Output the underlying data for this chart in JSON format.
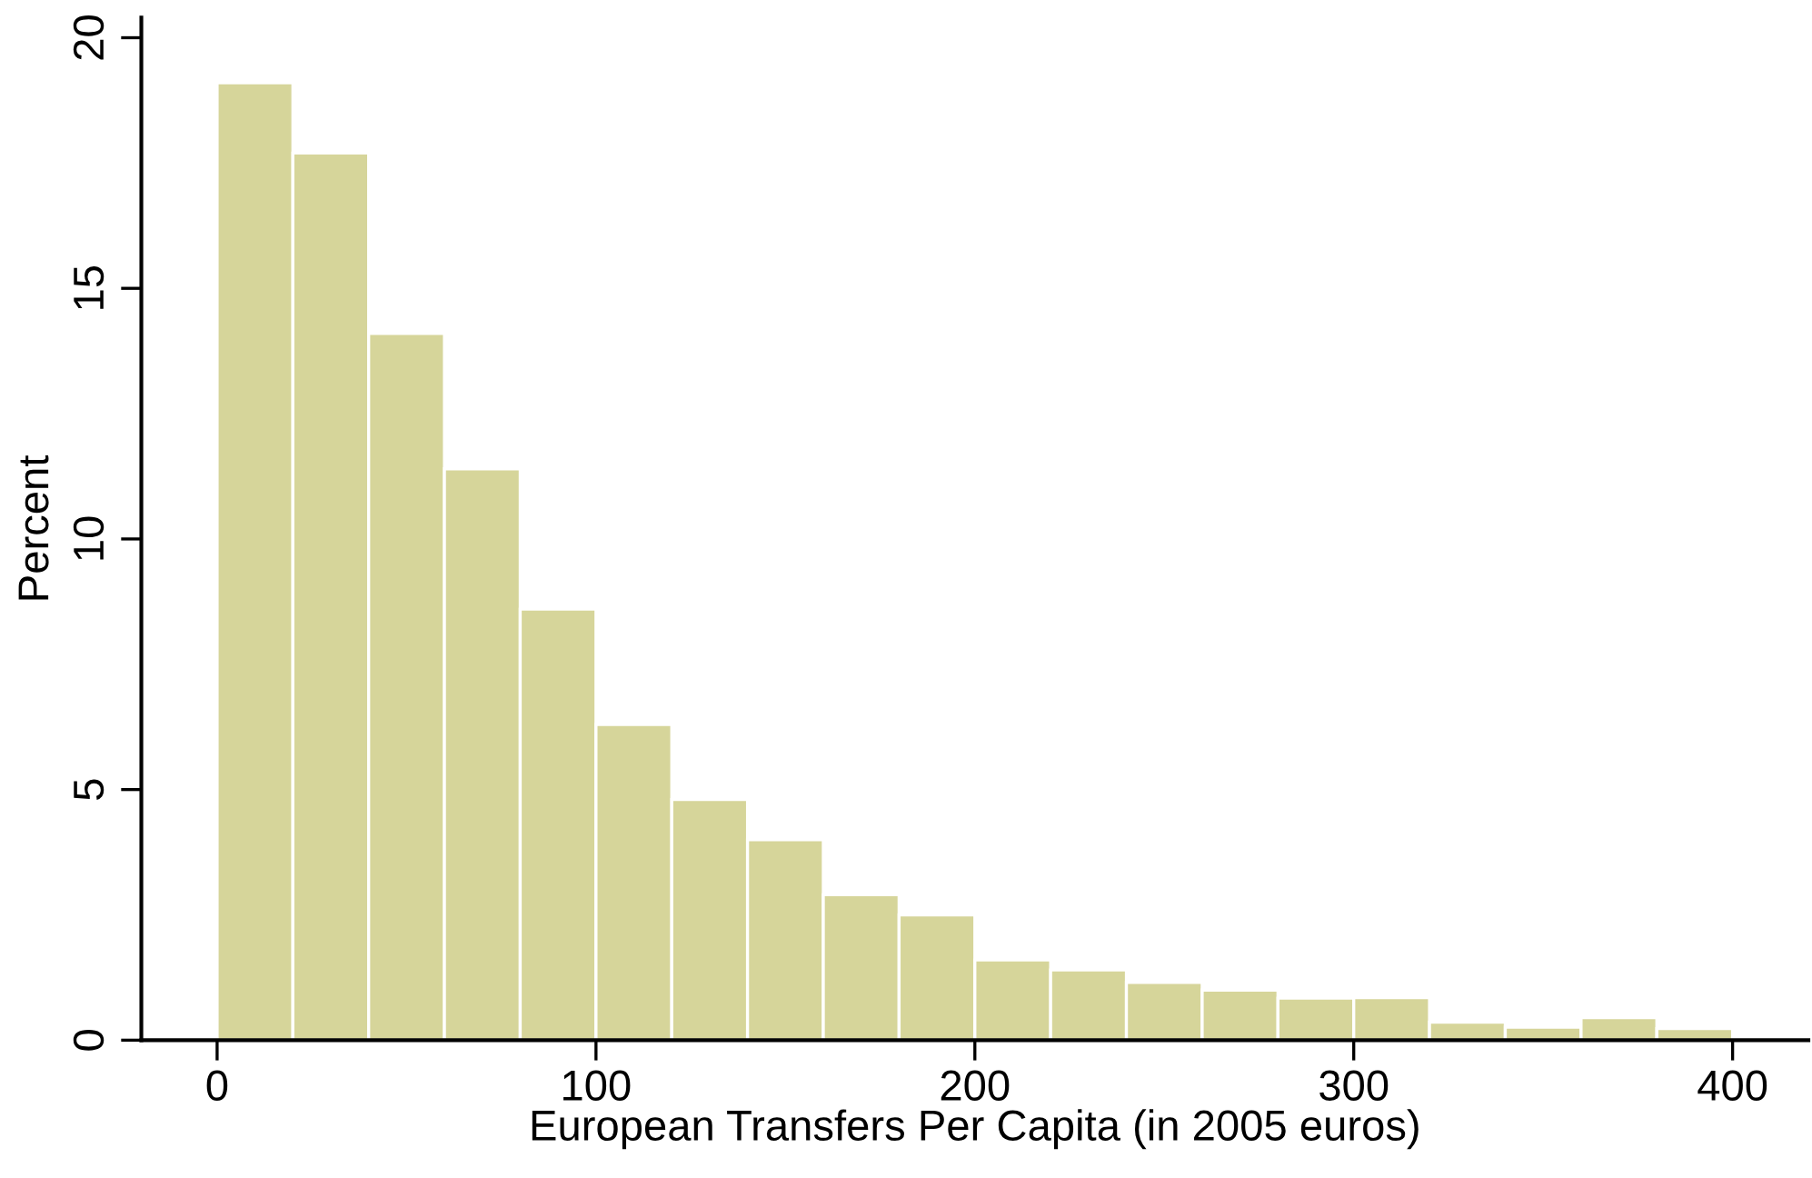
{
  "chart_data": {
    "type": "histogram",
    "xlabel": "European Transfers Per Capita (in 2005 euros)",
    "ylabel": "Percent",
    "bins": [
      0,
      20,
      40,
      60,
      80,
      100,
      120,
      140,
      160,
      180,
      200,
      220,
      240,
      260,
      280,
      300,
      320,
      340,
      360,
      380,
      400
    ],
    "values": [
      19.1,
      17.7,
      14.1,
      11.4,
      8.6,
      6.3,
      4.8,
      4.0,
      2.9,
      2.5,
      1.6,
      1.4,
      1.15,
      1.0,
      0.84,
      0.85,
      0.36,
      0.26,
      0.45,
      0.23
    ],
    "color": "#d6d59a",
    "xlim": [
      -20,
      420
    ],
    "ylim": [
      0,
      20.4
    ],
    "xticks": [
      0,
      100,
      200,
      300,
      400
    ],
    "yticks": [
      0,
      5,
      10,
      15,
      20
    ],
    "grid": false
  }
}
